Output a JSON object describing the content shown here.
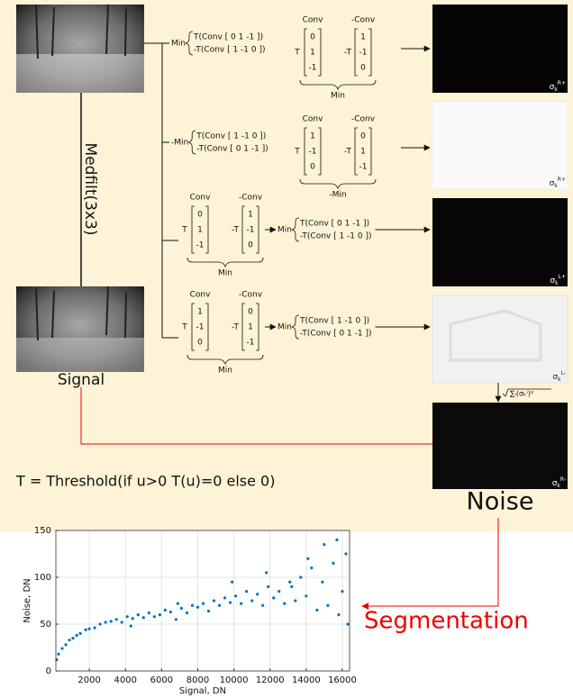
{
  "medfilt_label": "Medfilt(3x3)",
  "signal_label": "Signal",
  "threshold_note": "T = Threshold(if u>0 T(u)=0 else 0)",
  "noise_label": "Noise",
  "segmentation_label": "Segmentation",
  "sum_formula": "∑ᵢ(σₖⁱ)²",
  "branches": [
    {
      "formula": {
        "min": "Min",
        "lines": [
          "T(Conv [ 0  1  -1 ])",
          "-T(Conv [ 1  -1  0 ])"
        ]
      },
      "matrix": {
        "conv": "Conv",
        "neg_conv": "-Conv",
        "t": "T",
        "neg_t": "-T",
        "left": [
          "0",
          "1",
          "-1"
        ],
        "right": [
          "1",
          "-1",
          "0"
        ],
        "bottom": "Min"
      }
    },
    {
      "formula": {
        "min": "-Min",
        "lines": [
          "T(Conv [ 1  -1  0 ])",
          "-T(Conv [ 0  1  -1 ])"
        ]
      },
      "matrix": {
        "conv": "Conv",
        "neg_conv": "-Conv",
        "t": "T",
        "neg_t": "-T",
        "left": [
          "1",
          "-1",
          "0"
        ],
        "right": [
          "0",
          "1",
          "-1"
        ],
        "bottom": "-Min"
      }
    },
    {
      "matrix": {
        "conv": "Conv",
        "neg_conv": "-Conv",
        "t": "T",
        "neg_t": "-T",
        "left": [
          "0",
          "1",
          "-1"
        ],
        "right": [
          "1",
          "-1",
          "0"
        ],
        "bottom": "Min"
      },
      "formula": {
        "min": "Min",
        "lines": [
          "T(Conv [ 0  1  -1 ])",
          "-T(Conv [ 1  -1  0 ])"
        ]
      }
    },
    {
      "matrix": {
        "conv": "Conv",
        "neg_conv": "-Conv",
        "t": "T",
        "neg_t": "-T",
        "left": [
          "1",
          "-1",
          "0"
        ],
        "right": [
          "0",
          "1",
          "-1"
        ],
        "bottom": "Min"
      },
      "formula": {
        "min": "Min",
        "lines": [
          "T(Conv [ 1  -1  0 ])",
          "-T(Conv [ 0  1  -1 ])"
        ]
      }
    }
  ],
  "outputs": [
    {
      "sigma": "σ",
      "sub": "k",
      "sup": "R+"
    },
    {
      "sigma": "σ",
      "sub": "k",
      "sup": "R+"
    },
    {
      "sigma": "σ",
      "sub": "k",
      "sup": "L+"
    },
    {
      "sigma": "σ",
      "sub": "k",
      "sup": "L-"
    },
    {
      "sigma": "σ",
      "sub": "k",
      "sup": "R-"
    }
  ],
  "chart_data": {
    "type": "scatter",
    "x_label": "Signal, DN",
    "y_label": "Noise, DN",
    "color": "#0072bd",
    "grid": true,
    "xlim": [
      150,
      16400
    ],
    "ylim": [
      0,
      150
    ],
    "xticks": [
      2000,
      4000,
      6000,
      8000,
      10000,
      12000,
      14000,
      16000
    ],
    "yticks": [
      0,
      50,
      100,
      150
    ],
    "x": [
      200,
      300,
      500,
      700,
      900,
      1100,
      1300,
      1500,
      1800,
      2000,
      2300,
      2600,
      2900,
      3200,
      3500,
      3800,
      4100,
      4400,
      4700,
      5000,
      5300,
      5600,
      5900,
      6200,
      6500,
      6800,
      7100,
      7400,
      7700,
      8000,
      8300,
      8600,
      8900,
      9200,
      9500,
      9800,
      10100,
      10400,
      10700,
      11000,
      11300,
      11600,
      11900,
      12200,
      12500,
      12800,
      13100,
      13400,
      13700,
      14000,
      14300,
      14600,
      14900,
      15200,
      15500,
      15800,
      16000,
      16200,
      16300,
      9900,
      11800,
      14100,
      15000,
      15700,
      13200,
      6900,
      4300
    ],
    "values": [
      12,
      18,
      24,
      28,
      33,
      35,
      38,
      40,
      44,
      45,
      46,
      50,
      52,
      53,
      55,
      52,
      58,
      56,
      60,
      57,
      62,
      58,
      60,
      65,
      63,
      55,
      67,
      62,
      70,
      68,
      72,
      64,
      75,
      70,
      78,
      73,
      80,
      72,
      85,
      75,
      82,
      70,
      90,
      78,
      85,
      72,
      95,
      75,
      100,
      80,
      110,
      65,
      95,
      70,
      115,
      60,
      85,
      125,
      50,
      95,
      105,
      120,
      135,
      140,
      90,
      72,
      48
    ]
  }
}
